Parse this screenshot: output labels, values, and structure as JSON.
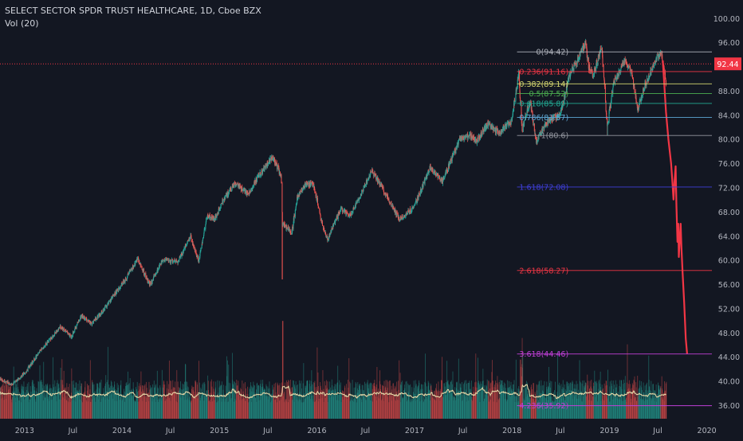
{
  "header": {
    "title": "SELECT SECTOR SPDR TRUST HEALTHCARE, 1D, Cboe BZX",
    "volume_label": "Vol (20)"
  },
  "colors": {
    "background": "#131722",
    "axis_text": "#b2b5be",
    "candle_up": "#26a69a",
    "candle_down": "#ef5350",
    "projection": "#f23645",
    "volume_ma": "#e8d9a8",
    "price_label_bg": "#f23645"
  },
  "chart_data": {
    "type": "candlestick",
    "y_axis": {
      "position": "right",
      "range": [
        33.5,
        103
      ],
      "ticks": [
        100.0,
        96.0,
        92.0,
        88.0,
        84.0,
        80.0,
        76.0,
        72.0,
        68.0,
        64.0,
        60.0,
        56.0,
        52.0,
        48.0,
        44.0,
        40.0,
        36.0
      ]
    },
    "x_axis": {
      "range": [
        "2012-10-01",
        "2020-01-20"
      ],
      "ticks": [
        {
          "label": "2013",
          "date": "2013-01-01"
        },
        {
          "label": "Jul",
          "date": "2013-07-01"
        },
        {
          "label": "2014",
          "date": "2014-01-01"
        },
        {
          "label": "Jul",
          "date": "2014-07-01"
        },
        {
          "label": "2015",
          "date": "2015-01-01"
        },
        {
          "label": "Jul",
          "date": "2015-07-01"
        },
        {
          "label": "2016",
          "date": "2016-01-01"
        },
        {
          "label": "Jul",
          "date": "2016-07-01"
        },
        {
          "label": "2017",
          "date": "2017-01-01"
        },
        {
          "label": "Jul",
          "date": "2017-07-01"
        },
        {
          "label": "2018",
          "date": "2018-01-01"
        },
        {
          "label": "Jul",
          "date": "2018-07-01"
        },
        {
          "label": "2019",
          "date": "2019-01-01"
        },
        {
          "label": "Jul",
          "date": "2019-07-01"
        },
        {
          "label": "2020",
          "date": "2020-01-01"
        }
      ]
    },
    "price_path": [
      [
        "2012-10-01",
        40.4
      ],
      [
        "2012-11-15",
        39.4
      ],
      [
        "2013-01-01",
        41.3
      ],
      [
        "2013-03-01",
        45.0
      ],
      [
        "2013-05-15",
        49.0
      ],
      [
        "2013-06-25",
        47.3
      ],
      [
        "2013-08-01",
        50.8
      ],
      [
        "2013-09-10",
        49.5
      ],
      [
        "2013-10-20",
        51.5
      ],
      [
        "2013-12-01",
        54.2
      ],
      [
        "2014-01-10",
        56.6
      ],
      [
        "2014-03-01",
        60.1
      ],
      [
        "2014-04-15",
        55.8
      ],
      [
        "2014-06-01",
        60.0
      ],
      [
        "2014-07-31",
        59.8
      ],
      [
        "2014-09-15",
        64.0
      ],
      [
        "2014-10-15",
        59.6
      ],
      [
        "2014-11-15",
        67.3
      ],
      [
        "2014-12-15",
        66.8
      ],
      [
        "2015-01-20",
        70.3
      ],
      [
        "2015-03-01",
        72.6
      ],
      [
        "2015-04-20",
        71.0
      ],
      [
        "2015-06-01",
        74.1
      ],
      [
        "2015-07-20",
        77.0
      ],
      [
        "2015-08-20",
        74.0
      ],
      [
        "2015-08-25",
        66.0
      ],
      [
        "2015-09-29",
        64.6
      ],
      [
        "2015-10-20",
        70.5
      ],
      [
        "2015-11-15",
        72.5
      ],
      [
        "2015-12-20",
        72.5
      ],
      [
        "2016-01-20",
        66.0
      ],
      [
        "2016-02-10",
        63.5
      ],
      [
        "2016-04-01",
        68.5
      ],
      [
        "2016-05-01",
        67.2
      ],
      [
        "2016-06-15",
        71.0
      ],
      [
        "2016-07-25",
        74.8
      ],
      [
        "2016-09-01",
        72.0
      ],
      [
        "2016-11-05",
        66.8
      ],
      [
        "2016-12-01",
        67.5
      ],
      [
        "2017-01-01",
        69.0
      ],
      [
        "2017-03-01",
        75.3
      ],
      [
        "2017-04-15",
        73.0
      ],
      [
        "2017-06-20",
        80.0
      ],
      [
        "2017-08-01",
        80.5
      ],
      [
        "2017-08-20",
        79.5
      ],
      [
        "2017-10-01",
        82.5
      ],
      [
        "2017-11-15",
        81.0
      ],
      [
        "2017-12-31",
        83.0
      ],
      [
        "2018-01-26",
        91.0
      ],
      [
        "2018-02-08",
        81.5
      ],
      [
        "2018-03-10",
        86.5
      ],
      [
        "2018-04-02",
        79.5
      ],
      [
        "2018-05-01",
        82.0
      ],
      [
        "2018-06-01",
        83.5
      ],
      [
        "2018-07-01",
        84.0
      ],
      [
        "2018-08-01",
        90.0
      ],
      [
        "2018-10-03",
        96.0
      ],
      [
        "2018-10-15",
        92.0
      ],
      [
        "2018-11-01",
        90.5
      ],
      [
        "2018-12-03",
        95.5
      ],
      [
        "2018-12-24",
        82.0
      ],
      [
        "2019-01-15",
        89.0
      ],
      [
        "2019-03-01",
        93.0
      ],
      [
        "2019-03-25",
        91.0
      ],
      [
        "2019-04-17",
        85.0
      ],
      [
        "2019-05-15",
        89.0
      ],
      [
        "2019-06-15",
        92.0
      ],
      [
        "2019-07-10",
        94.5
      ],
      [
        "2019-07-20",
        93.0
      ],
      [
        "2019-08-01",
        89.0
      ]
    ],
    "projection_path": [
      [
        "2019-07-20",
        93.0
      ],
      [
        "2019-08-01",
        84.5
      ],
      [
        "2019-08-10",
        80.0
      ],
      [
        "2019-08-20",
        76.0
      ],
      [
        "2019-08-25",
        73.0
      ],
      [
        "2019-08-29",
        70.0
      ],
      [
        "2019-09-02",
        73.0
      ],
      [
        "2019-09-06",
        75.5
      ],
      [
        "2019-09-09",
        69.0
      ],
      [
        "2019-09-13",
        63.0
      ],
      [
        "2019-09-16",
        66.0
      ],
      [
        "2019-09-18",
        60.5
      ],
      [
        "2019-09-21",
        63.0
      ],
      [
        "2019-09-25",
        66.0
      ],
      [
        "2019-09-28",
        62.0
      ],
      [
        "2019-10-02",
        58.0
      ],
      [
        "2019-10-08",
        53.0
      ],
      [
        "2019-10-14",
        47.0
      ],
      [
        "2019-10-19",
        44.5
      ]
    ],
    "current_price": {
      "label": "92.44",
      "value": 92.44
    },
    "fibonacci": {
      "start_date": "2018-01-20",
      "end_date": "2020-01-20",
      "levels": [
        {
          "label": "0(94.42)",
          "value": 94.42,
          "color": "#b2b5be"
        },
        {
          "label": "0.236(91.16)",
          "value": 91.16,
          "color": "#f23645"
        },
        {
          "label": "0.382(89.14)",
          "value": 89.14,
          "color": "#d4d66f"
        },
        {
          "label": "0.5(87.52)",
          "value": 87.52,
          "color": "#4caf50"
        },
        {
          "label": "0.618(85.89)",
          "value": 85.89,
          "color": "#22ab94"
        },
        {
          "label": "0.786(83.57)",
          "value": 83.57,
          "color": "#5ea7d4"
        },
        {
          "label": "1(80.6)",
          "value": 80.6,
          "color": "#9598a1"
        },
        {
          "label": "1.618(72.08)",
          "value": 72.08,
          "color": "#3f3fdb"
        },
        {
          "label": "2.618(58.27)",
          "value": 58.27,
          "color": "#f23645"
        },
        {
          "label": "3.618(44.46)",
          "value": 44.46,
          "color": "#c13fd8"
        },
        {
          "label": "4.236(35.92)",
          "value": 35.92,
          "color": "#c13fd8"
        }
      ]
    },
    "volume": {
      "name": "Vol (20)",
      "ma_period": 20
    }
  }
}
